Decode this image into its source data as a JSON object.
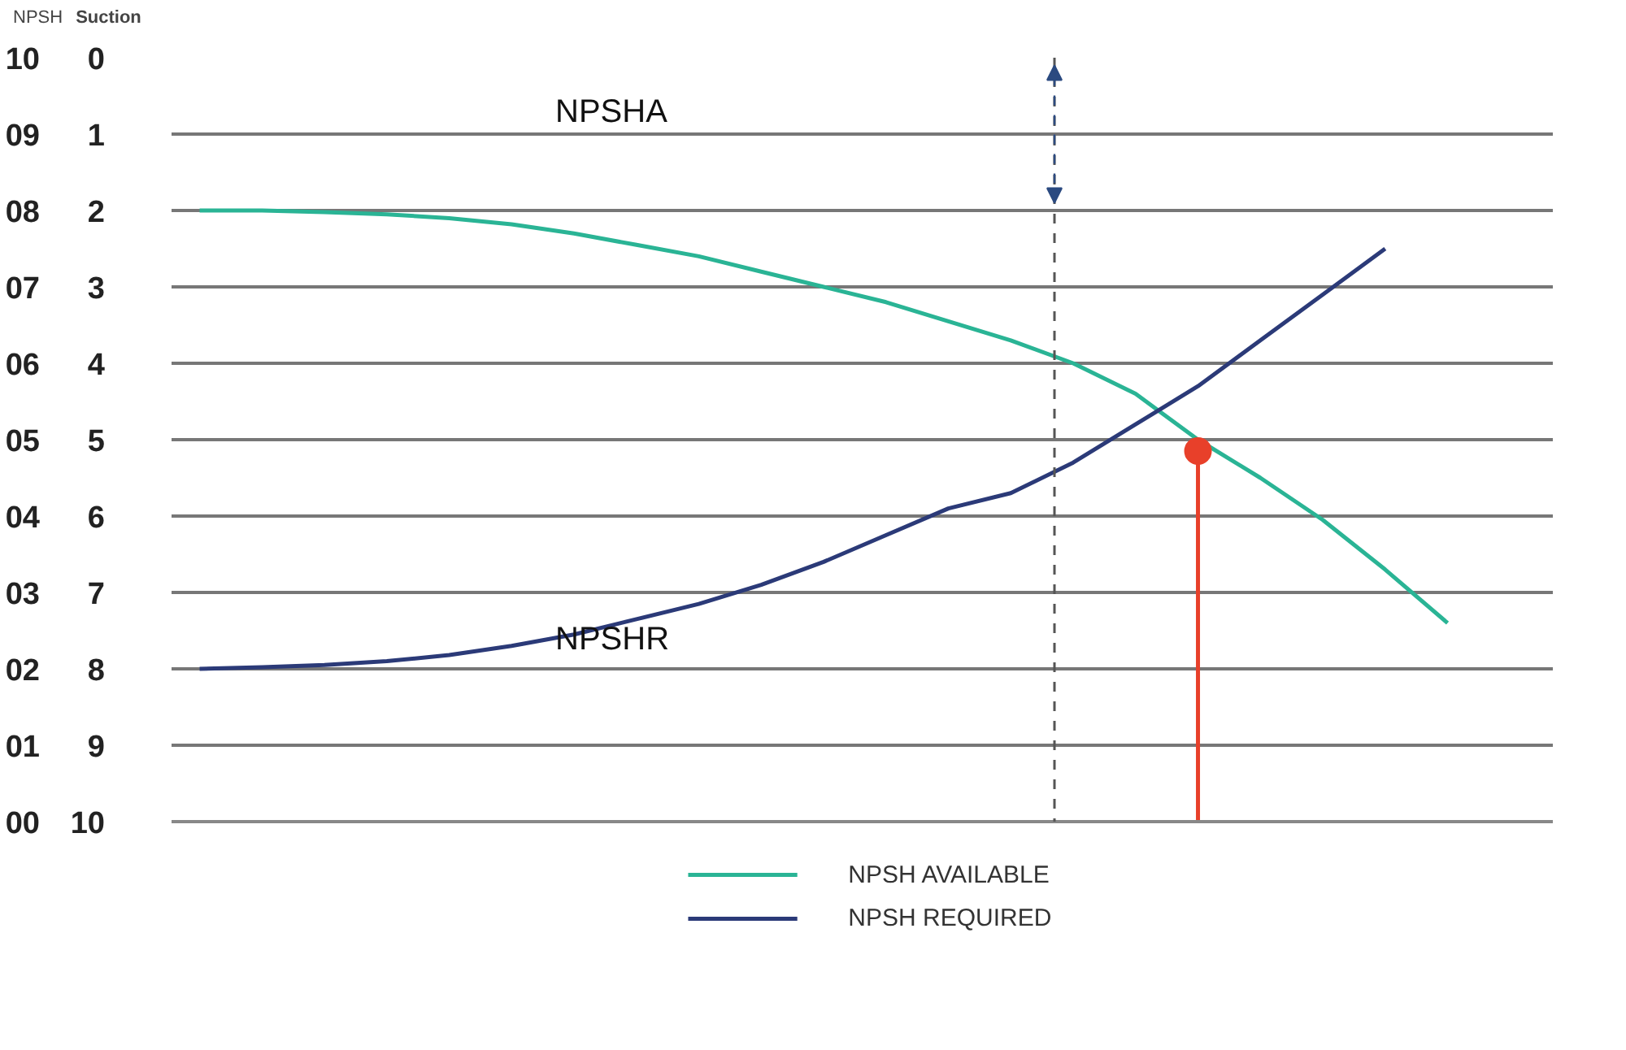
{
  "chart_data": {
    "type": "line",
    "ylabel": "NPSH",
    "y2label": "Suction",
    "categories": [
      null,
      null,
      null,
      null,
      null,
      null,
      null,
      null,
      null,
      null,
      null,
      null,
      null,
      null,
      null,
      null,
      null,
      null,
      null,
      null,
      null
    ],
    "series": [
      {
        "name": "NPSH AVAILABLE",
        "color": "#2ab495",
        "values": [
          8.0,
          8.0,
          7.98,
          7.95,
          7.9,
          7.82,
          7.7,
          7.55,
          7.4,
          7.2,
          7.0,
          6.8,
          6.55,
          6.3,
          6.0,
          5.6,
          5.0,
          4.5,
          3.95,
          3.3,
          2.6
        ]
      },
      {
        "name": "NPSH REQUIRED",
        "color": "#2b3a78",
        "values": [
          2.0,
          2.02,
          2.05,
          2.1,
          2.18,
          2.3,
          2.45,
          2.65,
          2.85,
          3.1,
          3.4,
          3.75,
          4.1,
          4.3,
          4.7,
          5.2,
          5.7,
          6.3,
          6.9,
          7.5,
          null
        ]
      },
      {
        "type": "lollipop",
        "color": "#e8402a",
        "values": [
          null,
          null,
          null,
          null,
          null,
          null,
          null,
          null,
          null,
          null,
          null,
          null,
          null,
          null,
          null,
          null,
          4.85,
          null,
          null,
          null,
          null
        ]
      }
    ],
    "ylim": [
      0,
      10
    ],
    "yticks": [
      {
        "value": 0,
        "label": "00"
      },
      {
        "value": 1,
        "label": "01"
      },
      {
        "value": 2,
        "label": "02"
      },
      {
        "value": 3,
        "label": "03"
      },
      {
        "value": 4,
        "label": "04"
      },
      {
        "value": 5,
        "label": "05"
      },
      {
        "value": 6,
        "label": "06"
      },
      {
        "value": 7,
        "label": "07"
      },
      {
        "value": 8,
        "label": "08"
      },
      {
        "value": 9,
        "label": "09"
      },
      10
    ],
    "y2lim": [
      10,
      0
    ],
    "y2ticks": [
      0,
      1,
      2,
      3,
      4,
      5,
      6,
      7,
      8,
      9,
      10
    ],
    "annotations": [
      "NPSHA",
      "NPSHR"
    ],
    "grid": "y",
    "legend": "bottom",
    "tick_labels": "y",
    "line_style": "solid"
  }
}
